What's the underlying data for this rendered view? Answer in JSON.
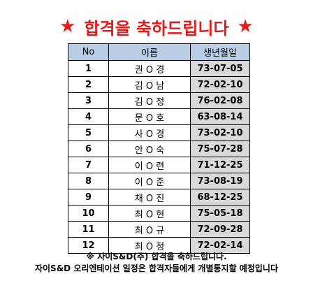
{
  "title": {
    "star_left": "★",
    "text": "합격을 축하드립니다",
    "star_right": "★"
  },
  "table": {
    "headers": [
      "No",
      "이름",
      "생년월일"
    ],
    "rows": [
      {
        "no": "1",
        "name": "권 O 경",
        "birth": "73-07-05"
      },
      {
        "no": "2",
        "name": "김 O 남",
        "birth": "72-02-10"
      },
      {
        "no": "3",
        "name": "김 O 정",
        "birth": "76-02-08"
      },
      {
        "no": "4",
        "name": "문 O 호",
        "birth": "63-08-14"
      },
      {
        "no": "5",
        "name": "사 O 경",
        "birth": "73-02-10"
      },
      {
        "no": "6",
        "name": "안 O 숙",
        "birth": "75-07-28"
      },
      {
        "no": "7",
        "name": "이 O 련",
        "birth": "71-12-25"
      },
      {
        "no": "8",
        "name": "이 O 준",
        "birth": "73-08-19"
      },
      {
        "no": "9",
        "name": "채 O 진",
        "birth": "68-12-25"
      },
      {
        "no": "10",
        "name": "최 O 현",
        "birth": "75-05-18"
      },
      {
        "no": "11",
        "name": "최 O 규",
        "birth": "72-09-28"
      },
      {
        "no": "12",
        "name": "최 O 정",
        "birth": "72-02-14"
      }
    ]
  },
  "footer": {
    "line1": "※ 자이S&D(주) 합격을 축하드립니다.",
    "line2": "자이S&D 오리엔테이션 일정은 합격자들에게 개별통지할 예정입니다"
  },
  "colors": {
    "title": "#e31b1b",
    "header_bg": "#b9cde5",
    "birth_bg": "#d9d9d9"
  }
}
